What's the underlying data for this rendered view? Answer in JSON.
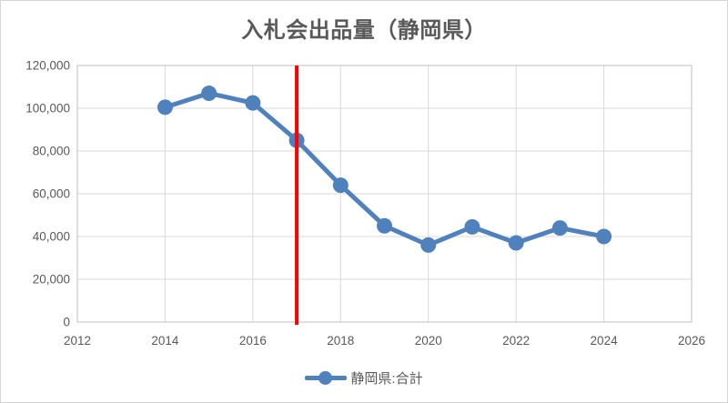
{
  "title": "入札会出品量（静岡県）",
  "legend": {
    "label": "静岡県:合計"
  },
  "colors": {
    "series": "#4F81BD",
    "annotation": "#FF0000",
    "gridline": "#D9D9D9",
    "plot_border": "#BFBFBF",
    "text": "#595959",
    "background": "#FFFFFF"
  },
  "chart_data": {
    "type": "line",
    "title": "入札会出品量（静岡県）",
    "x": [
      2014,
      2015,
      2016,
      2017,
      2018,
      2019,
      2020,
      2021,
      2022,
      2023,
      2024
    ],
    "series": [
      {
        "name": "静岡県:合計",
        "values": [
          100500,
          107000,
          102500,
          85000,
          64000,
          45000,
          36000,
          44500,
          37000,
          44000,
          40000
        ]
      }
    ],
    "xlim": [
      2012,
      2026
    ],
    "ylim": [
      0,
      120000
    ],
    "x_ticks": [
      {
        "value": 2012,
        "label": "2012"
      },
      {
        "value": 2014,
        "label": "2014"
      },
      {
        "value": 2016,
        "label": "2016"
      },
      {
        "value": 2018,
        "label": "2018"
      },
      {
        "value": 2020,
        "label": "2020"
      },
      {
        "value": 2022,
        "label": "2022"
      },
      {
        "value": 2024,
        "label": "2024"
      },
      {
        "value": 2026,
        "label": "2026"
      }
    ],
    "y_ticks": [
      {
        "value": 0,
        "label": "0"
      },
      {
        "value": 20000,
        "label": "20,000"
      },
      {
        "value": 40000,
        "label": "40,000"
      },
      {
        "value": 60000,
        "label": "60,000"
      },
      {
        "value": 80000,
        "label": "80,000"
      },
      {
        "value": 100000,
        "label": "100,000"
      },
      {
        "value": 120000,
        "label": "120,000"
      }
    ],
    "grid": true,
    "legend_position": "bottom",
    "annotation": {
      "type": "vline",
      "x": 2017,
      "color": "#FF0000"
    }
  }
}
